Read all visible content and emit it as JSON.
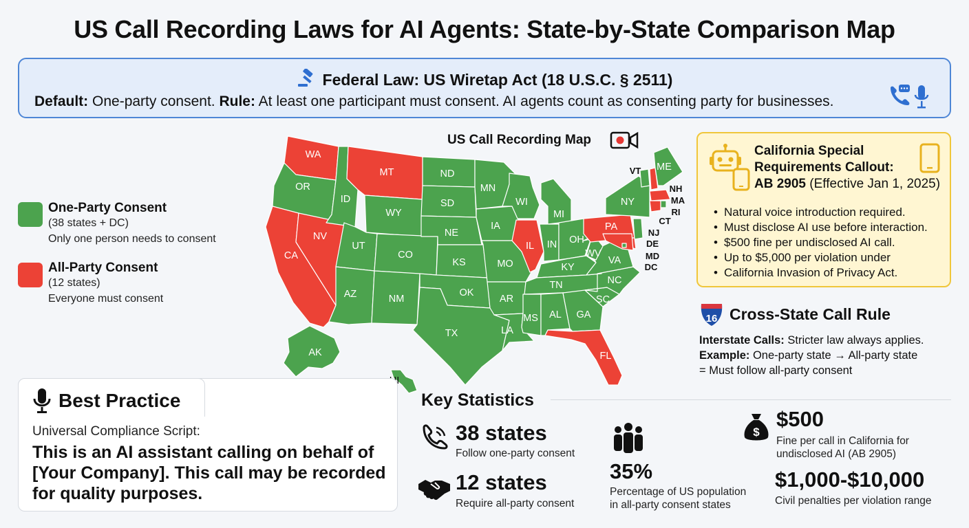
{
  "title": "US Call Recording Laws for AI Agents: State-by-State Comparison Map",
  "federal": {
    "title": "Federal Law: US Wiretap Act (18 U.S.C. § 2511)",
    "default_label": "Default:",
    "default_text": "One-party consent.",
    "rule_label": "Rule:",
    "rule_text": "At least one participant must consent. AI agents count as consenting party for businesses.",
    "icons": [
      "gavel-icon",
      "phone-chat-icon",
      "microphone-icon"
    ]
  },
  "legend": {
    "one_party": {
      "title": "One-Party Consent",
      "count": "(38 states + DC)",
      "desc": "Only one person needs to consent",
      "color": "#4ca34e"
    },
    "all_party": {
      "title": "All-Party Consent",
      "count": "(12 states)",
      "desc": "Everyone must consent",
      "color": "#ec4236"
    }
  },
  "map": {
    "title": "US Call Recording Map",
    "icon": "video-record-icon",
    "states": [
      {
        "code": "WA",
        "consent": "all"
      },
      {
        "code": "OR",
        "consent": "one"
      },
      {
        "code": "CA",
        "consent": "all"
      },
      {
        "code": "NV",
        "consent": "all"
      },
      {
        "code": "ID",
        "consent": "one"
      },
      {
        "code": "MT",
        "consent": "all"
      },
      {
        "code": "WY",
        "consent": "one"
      },
      {
        "code": "UT",
        "consent": "one"
      },
      {
        "code": "AZ",
        "consent": "one"
      },
      {
        "code": "CO",
        "consent": "one"
      },
      {
        "code": "NM",
        "consent": "one"
      },
      {
        "code": "ND",
        "consent": "one"
      },
      {
        "code": "SD",
        "consent": "one"
      },
      {
        "code": "NE",
        "consent": "one"
      },
      {
        "code": "KS",
        "consent": "one"
      },
      {
        "code": "OK",
        "consent": "one"
      },
      {
        "code": "TX",
        "consent": "one"
      },
      {
        "code": "MN",
        "consent": "one"
      },
      {
        "code": "IA",
        "consent": "one"
      },
      {
        "code": "MO",
        "consent": "one"
      },
      {
        "code": "AR",
        "consent": "one"
      },
      {
        "code": "LA",
        "consent": "one"
      },
      {
        "code": "WI",
        "consent": "one"
      },
      {
        "code": "IL",
        "consent": "all"
      },
      {
        "code": "MI",
        "consent": "one"
      },
      {
        "code": "IN",
        "consent": "one"
      },
      {
        "code": "OH",
        "consent": "one"
      },
      {
        "code": "KY",
        "consent": "one"
      },
      {
        "code": "TN",
        "consent": "one"
      },
      {
        "code": "MS",
        "consent": "one"
      },
      {
        "code": "AL",
        "consent": "one"
      },
      {
        "code": "GA",
        "consent": "one"
      },
      {
        "code": "FL",
        "consent": "all"
      },
      {
        "code": "SC",
        "consent": "one"
      },
      {
        "code": "NC",
        "consent": "one"
      },
      {
        "code": "VA",
        "consent": "one"
      },
      {
        "code": "WV",
        "consent": "one"
      },
      {
        "code": "PA",
        "consent": "all"
      },
      {
        "code": "NY",
        "consent": "one"
      },
      {
        "code": "VT",
        "consent": "one"
      },
      {
        "code": "NH",
        "consent": "all"
      },
      {
        "code": "ME",
        "consent": "one"
      },
      {
        "code": "MA",
        "consent": "all"
      },
      {
        "code": "RI",
        "consent": "one"
      },
      {
        "code": "CT",
        "consent": "all"
      },
      {
        "code": "NJ",
        "consent": "one"
      },
      {
        "code": "DE",
        "consent": "all"
      },
      {
        "code": "MD",
        "consent": "all"
      },
      {
        "code": "DC",
        "consent": "one"
      },
      {
        "code": "AK",
        "consent": "one"
      },
      {
        "code": "HI",
        "consent": "one"
      }
    ]
  },
  "california": {
    "title_line1": "California Special",
    "title_line2": "Requirements Callout:",
    "bill": "AB 2905",
    "effective": "(Effective Jan 1, 2025)",
    "icons": [
      "robot-icon",
      "smartphone-icon"
    ],
    "bullets": [
      "Natural voice introduction required.",
      "Must disclose AI use before interaction.",
      "$500 fine per undisclosed AI call.",
      "Up to $5,000 per violation under",
      "California Invasion of Privacy Act."
    ]
  },
  "cross_state": {
    "icon": "interstate-shield-icon",
    "shield_number": "16",
    "title": "Cross-State Call Rule",
    "interstate_label": "Interstate Calls:",
    "interstate_text": "Stricter law always applies.",
    "example_label": "Example:",
    "example_text": "One-party state → All-party state",
    "example_result": "= Must follow all-party consent"
  },
  "best_practice": {
    "icon": "microphone-icon",
    "title": "Best Practice",
    "subtitle": "Universal Compliance Script:",
    "script": "This is an AI assistant calling on behalf of [Your Company]. This call may be recorded for quality purposes."
  },
  "stats": {
    "title": "Key Statistics",
    "items": [
      {
        "icon": "phone-icon",
        "value": "38 states",
        "label": "Follow one-party consent"
      },
      {
        "icon": "handshake-icon",
        "value": "12 states",
        "label": "Require all-party consent"
      },
      {
        "icon": "people-icon",
        "value": "35%",
        "label_line1": "Percentage of US population",
        "label_line2": "in all-party consent states"
      },
      {
        "icon": "money-bag-icon",
        "value": "$500",
        "label_line1": "Fine per call in California for",
        "label_line2": "undisclosed AI (AB 2905)"
      },
      {
        "value": "$1,000-$10,000",
        "label": "Civil penalties per violation range"
      }
    ]
  }
}
